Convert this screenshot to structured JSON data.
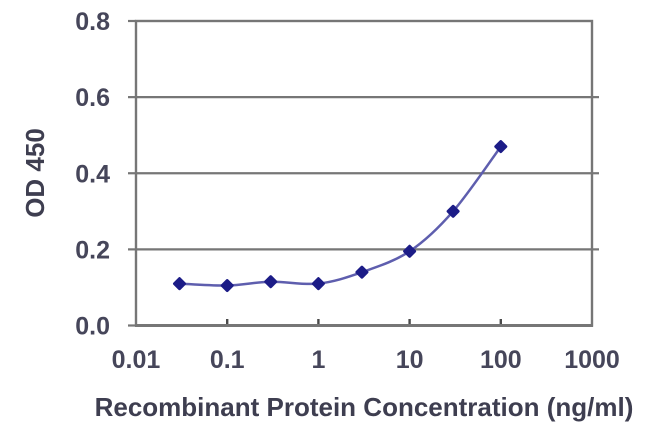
{
  "chart_data": {
    "type": "line",
    "title": "",
    "xlabel": "Recombinant Protein Concentration (ng/ml)",
    "ylabel": "OD 450",
    "x_scale": "log",
    "xlim": [
      0.01,
      1000
    ],
    "ylim": [
      0,
      0.8
    ],
    "x": [
      0.03,
      0.1,
      0.3,
      1,
      3,
      10,
      30,
      100
    ],
    "y": [
      0.11,
      0.105,
      0.115,
      0.11,
      0.14,
      0.195,
      0.3,
      0.47
    ],
    "x_tick_values": [
      0.01,
      0.1,
      1,
      10,
      100,
      1000
    ],
    "x_tick_labels": [
      "0.01",
      "0.1",
      "1",
      "10",
      "100",
      "1000"
    ],
    "y_tick_values": [
      0,
      0.2,
      0.4,
      0.6,
      0.8
    ],
    "y_tick_labels": [
      "0.0",
      "0.2",
      "0.4",
      "0.6",
      "0.8"
    ],
    "grid": "horizontal",
    "legend": "none",
    "marker_shape": "diamond",
    "colors": {
      "line": "#5e5eae",
      "marker": "#1c1c87",
      "grid": "#767676",
      "border": "#767676",
      "tick_label": "#46465a",
      "axis_title": "#3e3e50",
      "background": "#ffffff"
    }
  }
}
